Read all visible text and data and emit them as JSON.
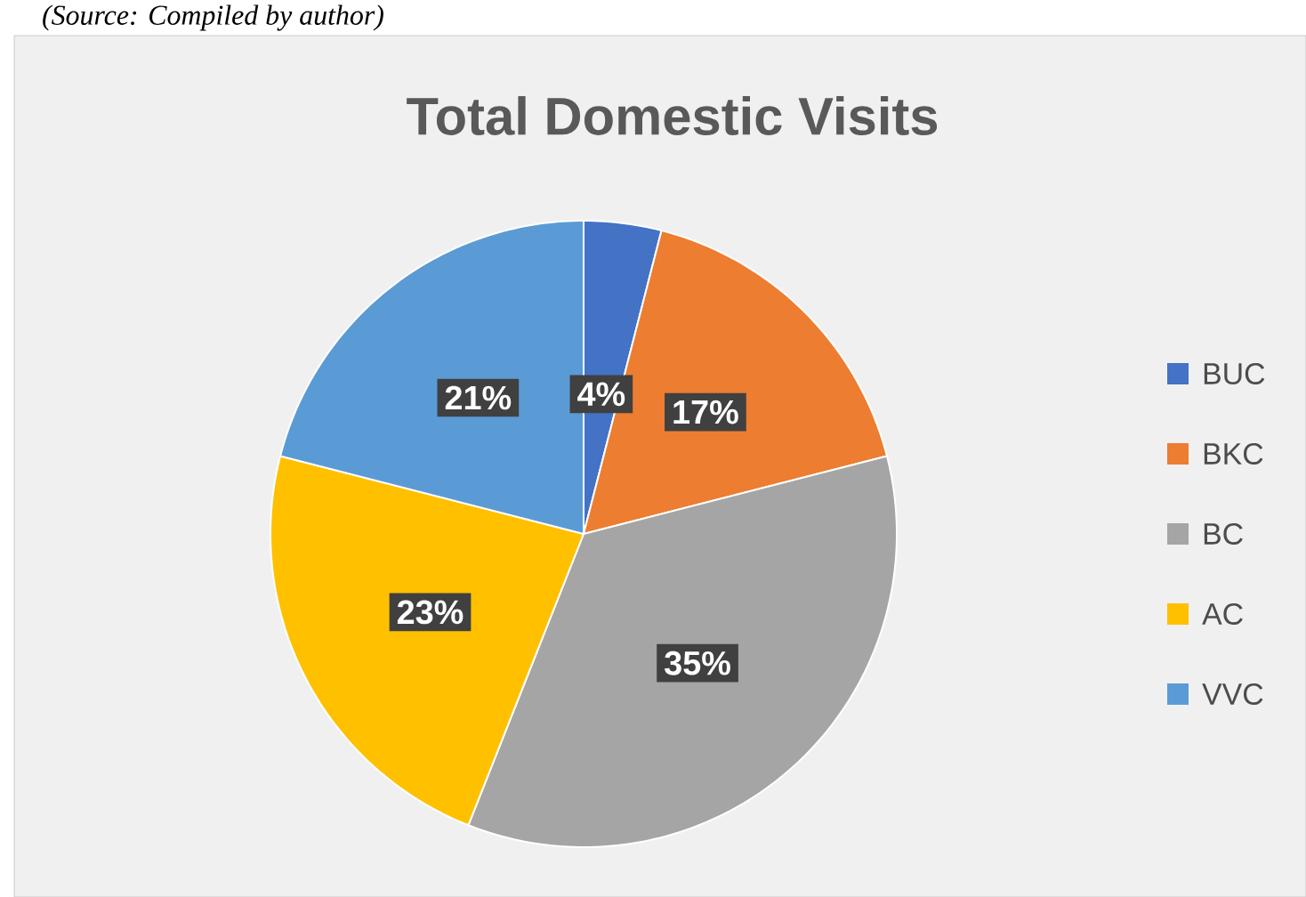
{
  "chart_data": {
    "type": "pie",
    "title": "Total Domestic Visits",
    "categories": [
      "BUC",
      "BKC",
      "BC",
      "AC",
      "VVC"
    ],
    "values": [
      4,
      17,
      35,
      23,
      21
    ],
    "value_labels": [
      "4%",
      "17%",
      "35%",
      "23%",
      "21%"
    ],
    "colors": [
      "#4472c4",
      "#ed7d31",
      "#a5a5a5",
      "#ffc000",
      "#5b9bd5"
    ],
    "legend": "right",
    "annotations": [
      "(Source: Compiled by author)"
    ]
  }
}
